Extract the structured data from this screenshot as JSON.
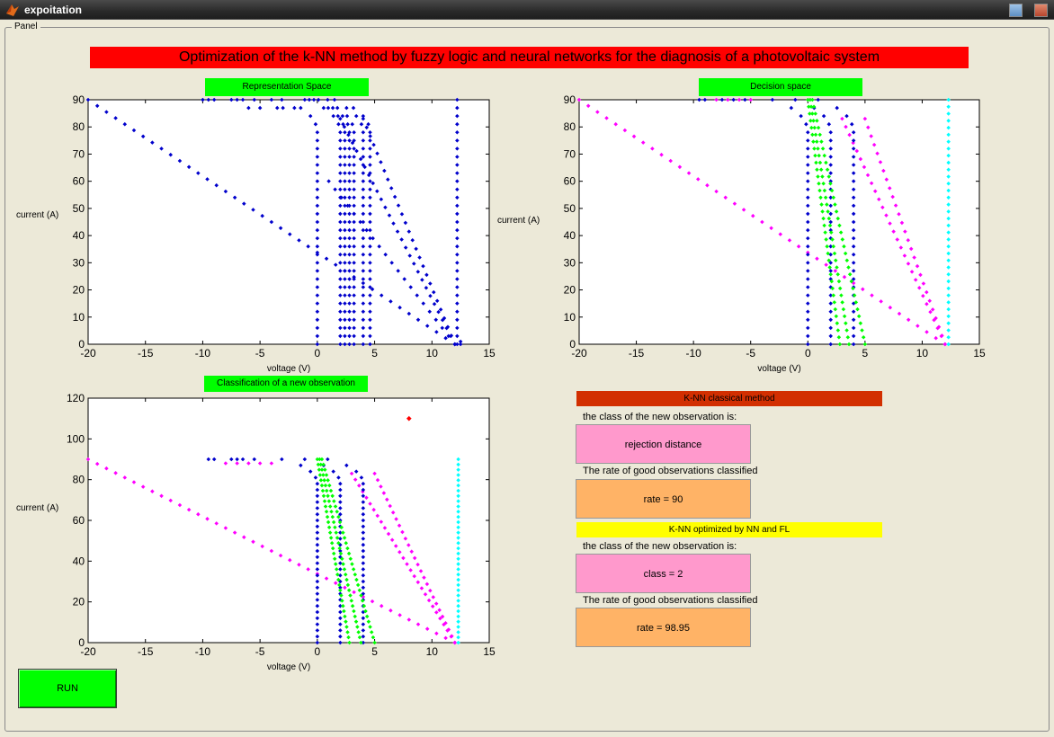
{
  "window": {
    "title": "expoitation",
    "icon": "matlab-icon"
  },
  "panel": {
    "label": "Panel"
  },
  "main_title": "Optimization of the k-NN method by fuzzy logic and neural networks for the diagnosis of a photovoltaic system",
  "plots": {
    "representation": {
      "label": "Representation Space",
      "xlabel": "voltage (V)",
      "ylabel": "current (A)"
    },
    "decision": {
      "label": "Decision space",
      "xlabel": "voltage (V)",
      "ylabel": "current (A)"
    },
    "classification": {
      "label": "Classification of a new observation",
      "xlabel": "voltage (V)",
      "ylabel": "current (A)"
    }
  },
  "classical": {
    "header": "K-NN classical method",
    "class_prompt": "the class of the new observation is:",
    "class_result": "rejection distance",
    "rate_prompt": "The rate of good observations classified",
    "rate_result": "rate = 90"
  },
  "optimized": {
    "header": "K-NN optimized by NN and FL",
    "class_prompt": "the class of the new observation is:",
    "class_result": "class = 2",
    "rate_prompt": "The rate of good observations classified",
    "rate_result": "rate = 98.95"
  },
  "run_button": {
    "label": "RUN"
  },
  "colors": {
    "class_blue": "#0000cc",
    "class_magenta": "#ff00ff",
    "class_green": "#00ff00",
    "class_cyan": "#00ffff",
    "new_observation": "#ff0000"
  },
  "chart_data": [
    {
      "type": "scatter",
      "title": "Representation Space",
      "xlabel": "voltage (V)",
      "ylabel": "current (A)",
      "xlim": [
        -20,
        15
      ],
      "ylim": [
        0,
        90
      ],
      "xticks": [
        -20,
        -15,
        -10,
        -5,
        0,
        5,
        10,
        15
      ],
      "yticks": [
        0,
        10,
        20,
        30,
        40,
        50,
        60,
        70,
        80,
        90
      ],
      "series": [
        {
          "color": "#0000cc",
          "curves": [
            "Voc0",
            "Voc2",
            "Voc2.5",
            "Voc3",
            "Voc3.5",
            "Voc4",
            "Voc4.5",
            "Voc5",
            "Voc12.2",
            "Ramp1",
            "Ramp2",
            "Ramp3",
            "Ramp4"
          ]
        }
      ],
      "grid": false
    },
    {
      "type": "scatter",
      "title": "Decision space",
      "xlabel": "voltage (V)",
      "ylabel": "current (A)",
      "xlim": [
        -20,
        15
      ],
      "ylim": [
        0,
        90
      ],
      "xticks": [
        -20,
        -15,
        -10,
        -5,
        0,
        5,
        10,
        15
      ],
      "yticks": [
        0,
        10,
        20,
        30,
        40,
        50,
        60,
        70,
        80,
        90
      ],
      "series": [
        {
          "color": "#0000cc",
          "curves": [
            "Voc0",
            "Voc2",
            "Voc4"
          ]
        },
        {
          "color": "#ff00ff",
          "curves": [
            "Ramp1",
            "Ramp2",
            "Ramp3"
          ]
        },
        {
          "color": "#00ff00",
          "curves": [
            "Green1",
            "Green2",
            "Green3"
          ]
        },
        {
          "color": "#00ffff",
          "curves": [
            "Voc12.3"
          ]
        }
      ],
      "grid": false
    },
    {
      "type": "scatter",
      "title": "Classification of a new observation",
      "xlabel": "voltage (V)",
      "ylabel": "current (A)",
      "xlim": [
        -20,
        15
      ],
      "ylim": [
        0,
        120
      ],
      "xticks": [
        -20,
        -15,
        -10,
        -5,
        0,
        5,
        10,
        15
      ],
      "yticks": [
        0,
        20,
        40,
        60,
        80,
        100,
        120
      ],
      "series": [
        {
          "color": "#0000cc",
          "curves": [
            "Voc0",
            "Voc2",
            "Voc4"
          ]
        },
        {
          "color": "#ff00ff",
          "curves": [
            "Ramp1",
            "Ramp2",
            "Ramp3"
          ]
        },
        {
          "color": "#00ff00",
          "curves": [
            "Green1",
            "Green2",
            "Green3"
          ]
        },
        {
          "color": "#00ffff",
          "curves": [
            "Voc12.3"
          ]
        },
        {
          "color": "#ff0000",
          "points": [
            [
              8,
              110
            ]
          ]
        }
      ],
      "grid": false
    }
  ]
}
